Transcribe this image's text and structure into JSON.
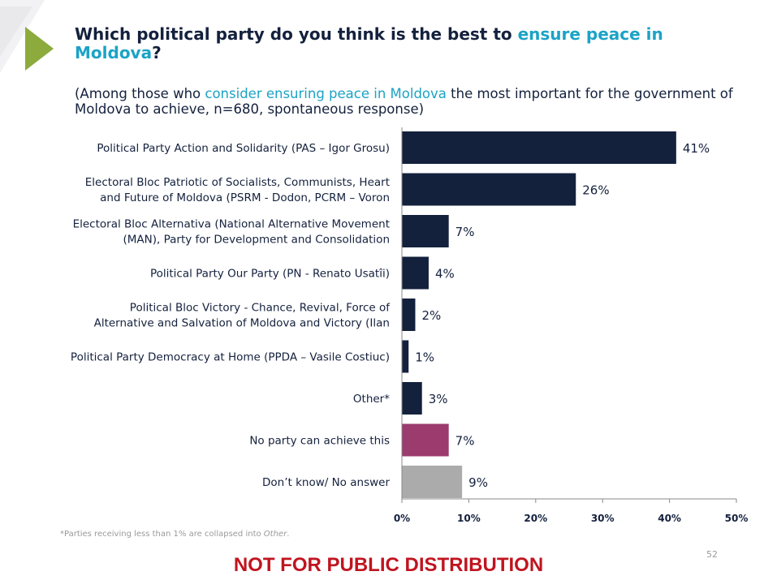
{
  "slide": {
    "title_part1": "Which political party do you think is the best to ",
    "title_highlight": "ensure peace in Moldova",
    "title_end": "?",
    "subtitle_part1": "(Among those who ",
    "subtitle_highlight": "consider ensuring peace in Moldova",
    "subtitle_part2": " the most important for the government of Moldova to achieve, n=680, spontaneous response)",
    "footnote_part1": "*Parties receiving less than 1% are collapsed into ",
    "footnote_italic": "Other",
    "footnote_end": ".",
    "page_number": "52",
    "notice": "NOT FOR PUBLIC DISTRIBUTION"
  },
  "colors": {
    "title": "#14213d",
    "highlight": "#1ba3c6",
    "bar_party": "#14213d",
    "bar_no_party": "#9b3b6e",
    "bar_dont_know": "#ababab",
    "arrow": "#8cab3c",
    "notice": "#c0141f"
  },
  "chart_data": {
    "type": "bar",
    "orientation": "horizontal",
    "categories": [
      [
        "Political Party Action and Solidarity (PAS – Igor Grosu)"
      ],
      [
        "Electoral Bloc Patriotic of Socialists, Communists, Heart",
        "and Future of Moldova (PSRM - Dodon, PCRM – Voron"
      ],
      [
        "Electoral Bloc Alternativa (National Alternative Movement",
        "(MAN), Party for Development and Consolidation"
      ],
      [
        "Political Party Our Party (PN - Renato Usatîi)"
      ],
      [
        "Political Bloc Victory - Chance, Revival, Force of",
        "Alternative and Salvation of Moldova and Victory (Ilan"
      ],
      [
        "Political Party Democracy at Home (PPDA – Vasile Costiuc)"
      ],
      [
        "Other*"
      ],
      [
        "No party can achieve this"
      ],
      [
        "Don’t know/ No answer"
      ]
    ],
    "values": [
      41,
      26,
      7,
      4,
      2,
      1,
      3,
      7,
      9
    ],
    "value_labels": [
      "41%",
      "26%",
      "7%",
      "4%",
      "2%",
      "1%",
      "3%",
      "7%",
      "9%"
    ],
    "bar_color_keys": [
      "bar_party",
      "bar_party",
      "bar_party",
      "bar_party",
      "bar_party",
      "bar_party",
      "bar_party",
      "bar_no_party",
      "bar_dont_know"
    ],
    "xlim": [
      0,
      50
    ],
    "xticks": [
      0,
      10,
      20,
      30,
      40,
      50
    ],
    "xtick_labels": [
      "0%",
      "10%",
      "20%",
      "30%",
      "40%",
      "50%"
    ],
    "grid": false,
    "legend": "none"
  }
}
